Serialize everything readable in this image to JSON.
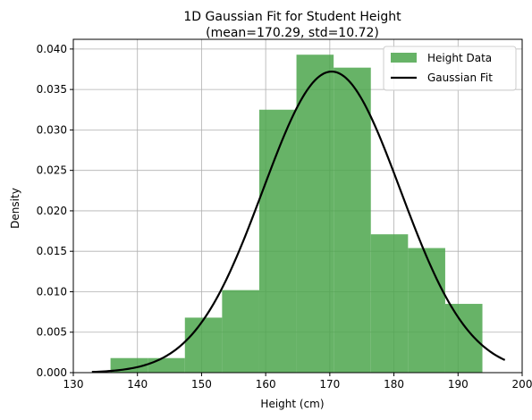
{
  "chart_data": {
    "type": "bar",
    "title": "1D Gaussian Fit for Student Height",
    "subtitle": "(mean=170.29, std=10.72)",
    "xlabel": "Height (cm)",
    "ylabel": "Density",
    "xlim": [
      130,
      200
    ],
    "ylim": [
      0,
      0.0412
    ],
    "xticks": [
      130,
      140,
      150,
      160,
      170,
      180,
      190,
      200
    ],
    "yticks": [
      0.0,
      0.005,
      0.01,
      0.015,
      0.02,
      0.025,
      0.03,
      0.035,
      0.04
    ],
    "xtick_labels": [
      "130",
      "140",
      "150",
      "160",
      "170",
      "180",
      "190",
      "200"
    ],
    "ytick_labels": [
      "0.000",
      "0.005",
      "0.010",
      "0.015",
      "0.020",
      "0.025",
      "0.030",
      "0.035",
      "0.040"
    ],
    "grid": true,
    "legend_position": "top-right",
    "histogram": {
      "name": "Height Data",
      "color": "#4ca64c",
      "bin_edges": [
        135.8,
        141.6,
        147.4,
        153.2,
        159.0,
        164.8,
        170.6,
        176.4,
        182.2,
        188.0,
        193.8
      ],
      "densities": [
        0.0018,
        0.0018,
        0.0068,
        0.0102,
        0.0325,
        0.0393,
        0.0377,
        0.0171,
        0.0154,
        0.0085
      ]
    },
    "fit": {
      "name": "Gaussian Fit",
      "color": "#000000",
      "mean": 170.29,
      "std": 10.72,
      "x_range": [
        132.9,
        197.3
      ]
    }
  }
}
